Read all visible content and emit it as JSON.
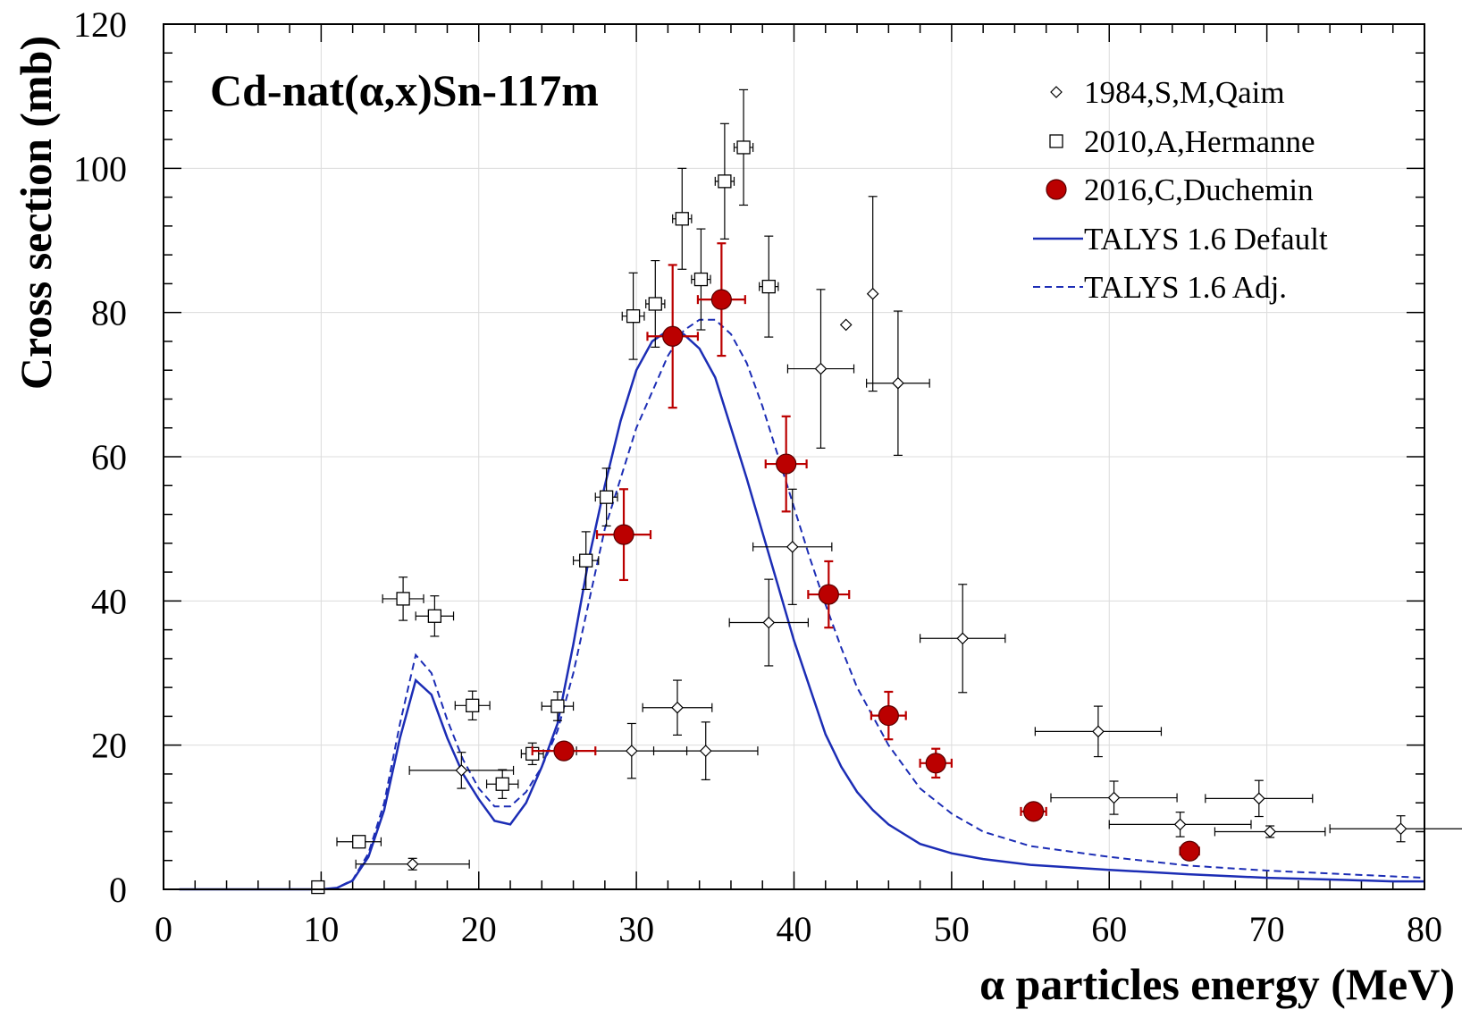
{
  "chart_data": {
    "type": "scatter",
    "title": "Cd-nat(α,x)Sn-117m",
    "xlabel": "α particles energy (MeV)",
    "ylabel": "Cross section (mb)",
    "xlim": [
      0,
      80
    ],
    "ylim": [
      0,
      120
    ],
    "xticks": [
      0,
      10,
      20,
      30,
      40,
      50,
      60,
      70,
      80
    ],
    "yticks": [
      0,
      20,
      40,
      60,
      80,
      100,
      120
    ],
    "grid": true,
    "legend_position": "top-right",
    "colors": {
      "duchemin": "#bb0000",
      "talys": "#1c2db5",
      "exp": "#000000"
    },
    "series": [
      {
        "name": "1984,S,M,Qaim",
        "marker": "diamond",
        "points": [
          {
            "x": 15.8,
            "y": 3.5,
            "xerr": 3.6,
            "yerr": 0.8
          },
          {
            "x": 18.9,
            "y": 16.5,
            "xerr": 3.3,
            "yerr": 2.5
          },
          {
            "x": 29.7,
            "y": 19.2,
            "xerr": 3.5,
            "yerr": 3.8
          },
          {
            "x": 32.6,
            "y": 25.2,
            "xerr": 2.2,
            "yerr": 3.8
          },
          {
            "x": 34.4,
            "y": 19.2,
            "xerr": 3.3,
            "yerr": 4.0
          },
          {
            "x": 38.4,
            "y": 37.0,
            "xerr": 2.5,
            "yerr": 6.0
          },
          {
            "x": 39.9,
            "y": 47.5,
            "xerr": 2.5,
            "yerr": 8.0
          },
          {
            "x": 41.7,
            "y": 72.2,
            "xerr": 2.1,
            "yerr": 11.0
          },
          {
            "x": 43.3,
            "y": 78.3,
            "xerr": 0,
            "yerr": 0
          },
          {
            "x": 45.0,
            "y": 82.6,
            "xerr": 0,
            "yerr": 13.5
          },
          {
            "x": 46.6,
            "y": 70.2,
            "xerr": 2.0,
            "yerr": 10.0
          },
          {
            "x": 50.7,
            "y": 34.8,
            "xerr": 2.7,
            "yerr": 7.5
          },
          {
            "x": 59.3,
            "y": 21.9,
            "xerr": 4.0,
            "yerr": 3.5
          },
          {
            "x": 60.3,
            "y": 12.7,
            "xerr": 4.0,
            "yerr": 2.3
          },
          {
            "x": 64.5,
            "y": 9.0,
            "xerr": 4.5,
            "yerr": 1.7
          },
          {
            "x": 69.5,
            "y": 12.6,
            "xerr": 3.4,
            "yerr": 2.5
          },
          {
            "x": 70.2,
            "y": 8.0,
            "xerr": 3.5,
            "yerr": 0.8
          },
          {
            "x": 78.5,
            "y": 8.4,
            "xerr": 4.5,
            "yerr": 1.8
          }
        ]
      },
      {
        "name": "2010,A,Hermanne",
        "marker": "square",
        "points": [
          {
            "x": 9.8,
            "y": 0.3,
            "xerr": 0,
            "yerr": 0
          },
          {
            "x": 12.4,
            "y": 6.6,
            "xerr": 1.4,
            "yerr": 0.8
          },
          {
            "x": 15.2,
            "y": 40.3,
            "xerr": 1.3,
            "yerr": 3.0
          },
          {
            "x": 17.2,
            "y": 37.9,
            "xerr": 1.2,
            "yerr": 2.8
          },
          {
            "x": 19.6,
            "y": 25.5,
            "xerr": 1.1,
            "yerr": 2.0
          },
          {
            "x": 21.5,
            "y": 14.6,
            "xerr": 1.0,
            "yerr": 2.0
          },
          {
            "x": 23.4,
            "y": 18.8,
            "xerr": 0.7,
            "yerr": 1.5
          },
          {
            "x": 25.0,
            "y": 25.4,
            "xerr": 1.0,
            "yerr": 2.0
          },
          {
            "x": 26.8,
            "y": 45.6,
            "xerr": 0.8,
            "yerr": 4.0
          },
          {
            "x": 28.1,
            "y": 54.4,
            "xerr": 0.7,
            "yerr": 4.0
          },
          {
            "x": 29.8,
            "y": 79.5,
            "xerr": 0.7,
            "yerr": 6.0
          },
          {
            "x": 31.2,
            "y": 81.2,
            "xerr": 0.6,
            "yerr": 6.0
          },
          {
            "x": 32.9,
            "y": 93.0,
            "xerr": 0.6,
            "yerr": 7.0
          },
          {
            "x": 34.1,
            "y": 84.6,
            "xerr": 0.6,
            "yerr": 7.0
          },
          {
            "x": 35.6,
            "y": 98.2,
            "xerr": 0.6,
            "yerr": 8.0
          },
          {
            "x": 36.8,
            "y": 102.9,
            "xerr": 0.6,
            "yerr": 8.0
          },
          {
            "x": 38.4,
            "y": 83.6,
            "xerr": 0.6,
            "yerr": 7.0
          }
        ]
      },
      {
        "name": "2016,C,Duchemin",
        "marker": "circle",
        "points": [
          {
            "x": 25.4,
            "y": 19.2,
            "xerr": 2.0,
            "yerr": 0.8
          },
          {
            "x": 29.2,
            "y": 49.2,
            "xerr": 1.7,
            "yerr": 6.3
          },
          {
            "x": 32.3,
            "y": 76.7,
            "xerr": 1.6,
            "yerr": 9.9
          },
          {
            "x": 35.4,
            "y": 81.8,
            "xerr": 1.5,
            "yerr": 7.8
          },
          {
            "x": 39.5,
            "y": 59.0,
            "xerr": 1.3,
            "yerr": 6.6
          },
          {
            "x": 42.2,
            "y": 40.9,
            "xerr": 1.3,
            "yerr": 4.6
          },
          {
            "x": 46.0,
            "y": 24.1,
            "xerr": 1.1,
            "yerr": 3.3
          },
          {
            "x": 49.0,
            "y": 17.5,
            "xerr": 1.0,
            "yerr": 2.0
          },
          {
            "x": 55.2,
            "y": 10.8,
            "xerr": 0.8,
            "yerr": 1.1
          },
          {
            "x": 65.1,
            "y": 5.3,
            "xerr": 0.6,
            "yerr": 0.6
          }
        ]
      },
      {
        "name": "TALYS 1.6 Default",
        "style": "solid-line",
        "x": [
          1,
          9,
          10,
          11,
          12,
          13,
          14,
          15,
          16,
          17,
          18,
          19,
          20,
          21,
          22,
          23,
          24,
          25,
          26,
          27,
          28,
          29,
          30,
          31,
          32,
          33,
          34,
          35,
          36,
          37,
          38,
          39,
          40,
          41,
          42,
          43,
          44,
          45,
          46,
          48,
          50,
          52,
          55,
          60,
          65,
          70,
          75,
          78,
          80
        ],
        "y": [
          0,
          0,
          0,
          0.2,
          1.2,
          4.5,
          11,
          21,
          29,
          27,
          21,
          16,
          12.5,
          9.5,
          9,
          12,
          17,
          23,
          34,
          46,
          56,
          65,
          72,
          76,
          77.5,
          77,
          75,
          71,
          64,
          57,
          49.5,
          42,
          34.5,
          28,
          21.5,
          17,
          13.5,
          11,
          9,
          6.3,
          5,
          4.2,
          3.4,
          2.7,
          2.1,
          1.6,
          1.3,
          1.1,
          1.1
        ]
      },
      {
        "name": "TALYS 1.6 Adj.",
        "style": "dashed-line",
        "x": [
          1,
          9,
          10,
          11,
          12,
          13,
          14,
          15,
          16,
          17,
          18,
          19,
          20,
          21,
          22,
          23,
          24,
          25,
          26,
          27,
          28,
          29,
          30,
          31,
          32,
          33,
          34,
          35,
          36,
          37,
          38,
          39,
          40,
          41,
          42,
          43,
          44,
          45,
          46,
          48,
          50,
          52,
          55,
          60,
          65,
          70,
          75,
          78,
          80
        ],
        "y": [
          0,
          0,
          0,
          0.2,
          1.3,
          5,
          12,
          23,
          32.5,
          30,
          23.5,
          18,
          14,
          11.5,
          11.5,
          13.5,
          17,
          22,
          30,
          40,
          50,
          57,
          64,
          69,
          74,
          77.5,
          79,
          79,
          77,
          73,
          67,
          60,
          53,
          46,
          39.5,
          33.5,
          28,
          24,
          20,
          14,
          10.5,
          8,
          6,
          4.5,
          3.3,
          2.6,
          2.1,
          1.8,
          1.6
        ]
      }
    ]
  }
}
